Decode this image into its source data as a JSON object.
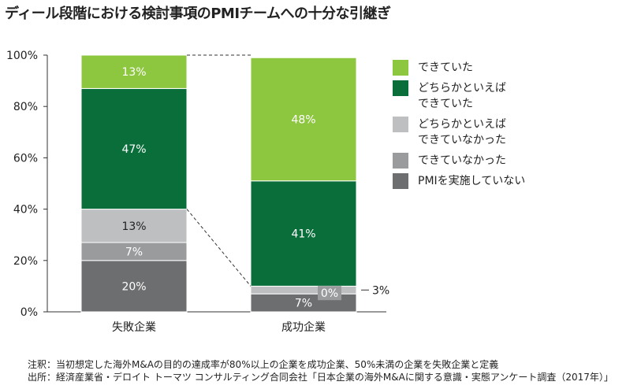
{
  "title": "ディール段階における検討事項のPMIチームへの十分な引継ぎ",
  "chart_data": {
    "type": "bar",
    "stacked": true,
    "categories": [
      "失敗企業",
      "成功企業"
    ],
    "series": [
      {
        "name": "PMIを実施していない",
        "color": "#6d6e70",
        "values": [
          20,
          7
        ],
        "labels": [
          "20%",
          "7%"
        ]
      },
      {
        "name": "できていなかった",
        "color": "#9a9b9d",
        "values": [
          7,
          0
        ],
        "labels": [
          "7%",
          "0%"
        ]
      },
      {
        "name": "どちらかといえば\nできていなかった",
        "color": "#bebfc1",
        "values": [
          13,
          3
        ],
        "labels": [
          "13%",
          "3%"
        ]
      },
      {
        "name": "どちらかといえば\nできていた",
        "color": "#0a6e3a",
        "values": [
          47,
          41
        ],
        "labels": [
          "47%",
          "41%"
        ]
      },
      {
        "name": "できていた",
        "color": "#8dc63f",
        "values": [
          13,
          48
        ],
        "labels": [
          "13%",
          "48%"
        ]
      }
    ],
    "yticks": [
      "0%",
      "20%",
      "40%",
      "60%",
      "80%",
      "100%"
    ],
    "ylim": [
      0,
      100
    ],
    "grid": false,
    "legend_position": "right"
  },
  "legend_order": [
    4,
    3,
    2,
    1,
    0
  ],
  "notes": [
    "注釈：当初想定した海外M&Aの目的の達成率が80%以上の企業を成功企業、50%未満の企業を失敗企業と定義",
    "出所：経済産業省・デロイト トーマツ コンサルティング合同会社「日本企業の海外M&Aに関する意識・実態アンケート調査（2017年）」"
  ]
}
